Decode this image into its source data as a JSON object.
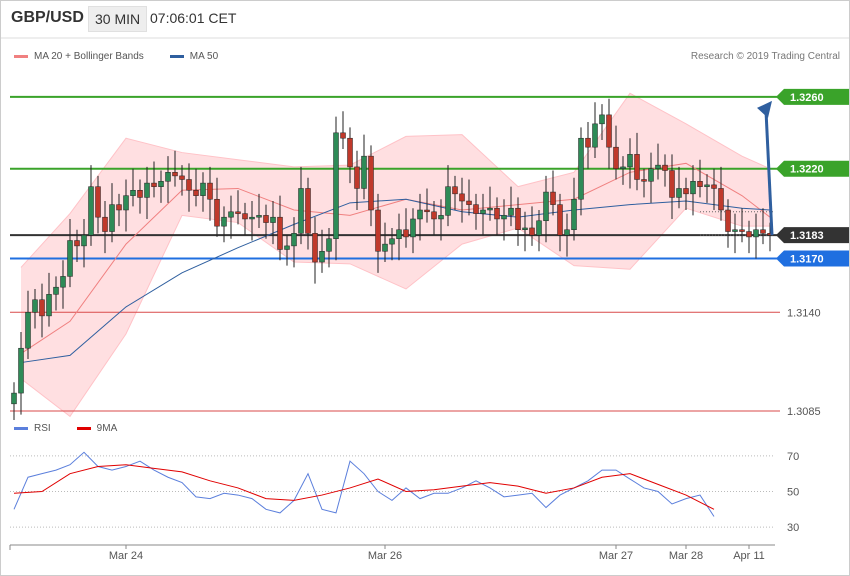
{
  "header": {
    "symbol": "GBP/USD",
    "timeframe": "30 MIN",
    "time": "07:06:01 CET"
  },
  "legend": {
    "ma20_label": "MA 20 + Bollinger Bands",
    "ma20_color": "#f08080",
    "ma50_label": "MA 50",
    "ma50_color": "#2f5f9f"
  },
  "copyright": "Research © 2019 Trading Central",
  "rsi_legend": {
    "rsi_label": "RSI",
    "rsi_color": "#5b7fdc",
    "ma9_label": "9MA",
    "ma9_color": "#e00000"
  },
  "chart_data": [
    {
      "type": "candlestick",
      "price_range": [
        1.308,
        1.3275
      ],
      "levels": [
        {
          "name": "resistance-2",
          "value": 1.326,
          "label": "1.3260",
          "color": "#3aa32a",
          "style": "tag"
        },
        {
          "name": "resistance-1",
          "value": 1.322,
          "label": "1.3220",
          "color": "#3aa32a",
          "style": "tag"
        },
        {
          "name": "current-price",
          "value": 1.3183,
          "label": "1.3183",
          "color": "#333333",
          "style": "tag"
        },
        {
          "name": "pivot",
          "value": 1.317,
          "label": "1.3170",
          "color": "#1f6fe0",
          "style": "tag"
        },
        {
          "name": "support-1",
          "value": 1.314,
          "label": "1.3140",
          "color": "#d94a4a",
          "style": "text"
        },
        {
          "name": "support-2",
          "value": 1.3085,
          "label": "1.3085",
          "color": "#d94a4a",
          "style": "text"
        }
      ],
      "dotted_levels": [
        1.3196,
        1.3183
      ],
      "closes": [
        1.3095,
        1.312,
        1.314,
        1.3147,
        1.3138,
        1.315,
        1.3154,
        1.316,
        1.318,
        1.3177,
        1.3183,
        1.321,
        1.3193,
        1.3185,
        1.32,
        1.3197,
        1.3205,
        1.3208,
        1.3204,
        1.3212,
        1.321,
        1.3213,
        1.3218,
        1.3216,
        1.3214,
        1.3208,
        1.3205,
        1.3212,
        1.3203,
        1.3188,
        1.3193,
        1.3196,
        1.3195,
        1.3192,
        1.3193,
        1.3194,
        1.319,
        1.3193,
        1.3175,
        1.3177,
        1.3184,
        1.3209,
        1.3184,
        1.3168,
        1.3174,
        1.3181,
        1.324,
        1.3237,
        1.3221,
        1.3209,
        1.3227,
        1.3197,
        1.3174,
        1.3178,
        1.3181,
        1.3186,
        1.3182,
        1.3192,
        1.3197,
        1.3196,
        1.3192,
        1.3194,
        1.321,
        1.3206,
        1.3202,
        1.32,
        1.3195,
        1.3197,
        1.3198,
        1.3192,
        1.3194,
        1.3198,
        1.3186,
        1.3187,
        1.3183,
        1.3191,
        1.3207,
        1.32,
        1.3183,
        1.3186,
        1.3203,
        1.3237,
        1.3232,
        1.3245,
        1.325,
        1.3232,
        1.322,
        1.3221,
        1.3228,
        1.3214,
        1.3213,
        1.322,
        1.3222,
        1.3219,
        1.3204,
        1.3209,
        1.3206,
        1.3213,
        1.321,
        1.3211,
        1.3209,
        1.3197,
        1.3185,
        1.3186,
        1.3185,
        1.3182,
        1.3186,
        1.3184,
        1.3183
      ],
      "ma20_bands": {
        "x": [
          1,
          8,
          16,
          24,
          32,
          40,
          48,
          56,
          64,
          72,
          80,
          88,
          96,
          104,
          108
        ],
        "upper": [
          1.3165,
          1.3195,
          1.3237,
          1.3229,
          1.3225,
          1.3221,
          1.3222,
          1.3238,
          1.3239,
          1.321,
          1.3218,
          1.3262,
          1.3245,
          1.3227,
          1.322
        ],
        "mid": [
          1.3117,
          1.3135,
          1.3178,
          1.3208,
          1.3209,
          1.3197,
          1.3194,
          1.3203,
          1.3197,
          1.32,
          1.3203,
          1.3218,
          1.3223,
          1.3205,
          1.3193
        ],
        "lower": [
          1.3103,
          1.3082,
          1.3128,
          1.3194,
          1.319,
          1.3168,
          1.3167,
          1.3153,
          1.3178,
          1.3187,
          1.3166,
          1.3164,
          1.3198,
          1.3188,
          1.3188
        ]
      },
      "ma50": {
        "x": [
          1,
          8,
          16,
          24,
          32,
          40,
          48,
          56,
          64,
          72,
          80,
          88,
          96,
          104,
          108
        ],
        "values": [
          1.3112,
          1.3116,
          1.3143,
          1.3162,
          1.3176,
          1.3189,
          1.3201,
          1.3203,
          1.3196,
          1.3193,
          1.3197,
          1.32,
          1.3202,
          1.3198,
          1.3197
        ]
      },
      "forecast": {
        "from": 1.3183,
        "to": 1.326
      },
      "x_labels": [
        {
          "label": "Mar 24",
          "index": 16
        },
        {
          "label": "Mar 26",
          "index": 53
        },
        {
          "label": "Mar 27",
          "index": 86
        },
        {
          "label": "Mar 28",
          "index": 96
        },
        {
          "label": "Apr 11",
          "index": 105
        }
      ]
    },
    {
      "type": "line",
      "name": "RSI",
      "ylim": [
        20,
        80
      ],
      "y_ticks": [
        70,
        50,
        30
      ],
      "rsi": {
        "x": [
          0,
          2,
          4,
          6,
          8,
          10,
          12,
          14,
          16,
          18,
          20,
          22,
          24,
          26,
          28,
          30,
          32,
          34,
          36,
          38,
          40,
          42,
          44,
          46,
          48,
          50,
          52,
          54,
          56,
          58,
          60,
          62,
          64,
          66,
          68,
          70,
          72,
          74,
          76,
          78,
          80,
          82,
          84,
          86,
          88,
          90,
          92,
          94,
          96,
          98,
          100
        ],
        "values": [
          40,
          58,
          60,
          62,
          65,
          72,
          64,
          62,
          64,
          67,
          62,
          58,
          55,
          47,
          46,
          49,
          48,
          46,
          40,
          38,
          45,
          60,
          40,
          38,
          67,
          60,
          50,
          45,
          52,
          46,
          49,
          49,
          52,
          56,
          52,
          47,
          48,
          49,
          41,
          48,
          52,
          56,
          62,
          62,
          57,
          52,
          50,
          43,
          46,
          48,
          36
        ]
      },
      "ma9": {
        "x": [
          0,
          4,
          8,
          12,
          16,
          20,
          24,
          28,
          32,
          36,
          40,
          44,
          48,
          52,
          56,
          60,
          64,
          68,
          72,
          76,
          80,
          84,
          88,
          92,
          96,
          100
        ],
        "values": [
          49,
          50,
          60,
          64,
          65,
          63,
          61,
          56,
          52,
          46,
          45,
          48,
          52,
          57,
          50,
          51,
          53,
          55,
          53,
          49,
          52,
          58,
          60,
          54,
          48,
          40
        ]
      }
    }
  ]
}
